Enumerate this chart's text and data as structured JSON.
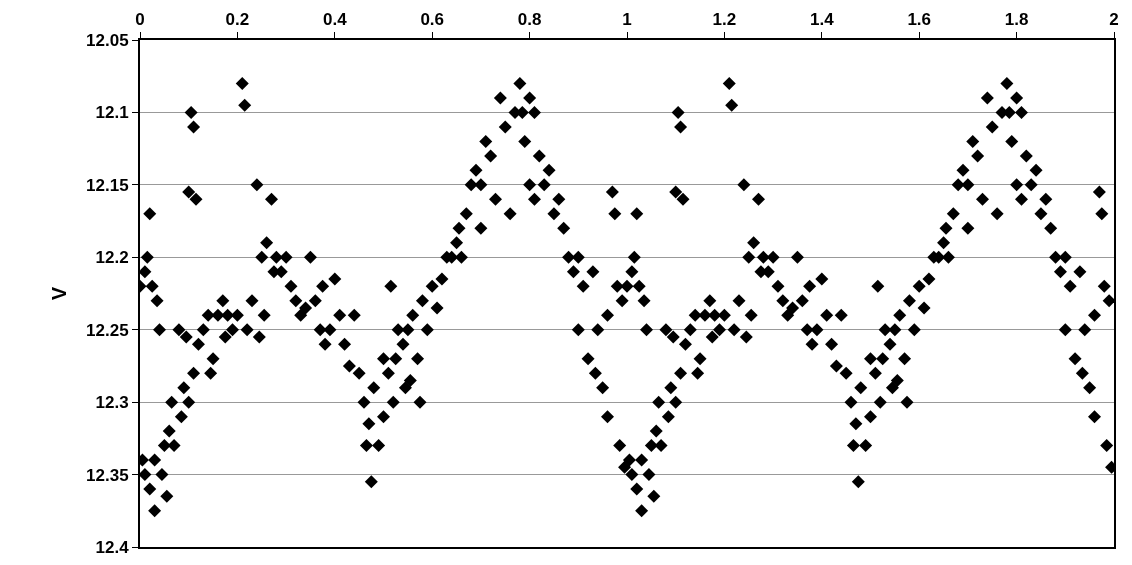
{
  "chart_data": {
    "type": "scatter",
    "ylabel": "V",
    "marker": "diamond",
    "grid": "y",
    "xlim": [
      0,
      2
    ],
    "xticks": [
      0,
      0.2,
      0.4,
      0.6,
      0.8,
      1,
      1.2,
      1.4,
      1.6,
      1.8,
      2
    ],
    "ylim": [
      12.4,
      12.05
    ],
    "yticks": [
      12.05,
      12.1,
      12.15,
      12.2,
      12.25,
      12.3,
      12.35,
      12.4
    ],
    "series": [
      {
        "color": "#000000",
        "x": [
          0,
          0.005,
          0.01,
          0.01,
          0.015,
          0.02,
          0.02,
          0.025,
          0.03,
          0.03,
          0.035,
          0.04,
          0.045,
          0.05,
          0.055,
          0.06,
          0.065,
          0.07,
          0.08,
          0.085,
          0.09,
          0.095,
          0.1,
          0.1,
          0.105,
          0.11,
          0.11,
          0.115,
          0.12,
          0.13,
          0.14,
          0.145,
          0.15,
          0.16,
          0.17,
          0.175,
          0.18,
          0.19,
          0.2,
          0.21,
          0.215,
          0.22,
          0.23,
          0.24,
          0.245,
          0.25,
          0.255,
          0.26,
          0.27,
          0.275,
          0.28,
          0.29,
          0.3,
          0.31,
          0.32,
          0.33,
          0.34,
          0.35,
          0.36,
          0.37,
          0.375,
          0.38,
          0.39,
          0.4,
          0.41,
          0.42,
          0.43,
          0.44,
          0.45,
          0.46,
          0.465,
          0.47,
          0.475,
          0.48,
          0.49,
          0.5,
          0.5,
          0.51,
          0.515,
          0.52,
          0.525,
          0.53,
          0.54,
          0.545,
          0.55,
          0.555,
          0.56,
          0.57,
          0.575,
          0.58,
          0.59,
          0.6,
          0.61,
          0.62,
          0.63,
          0.64,
          0.65,
          0.655,
          0.66,
          0.67,
          0.68,
          0.69,
          0.7,
          0.7,
          0.71,
          0.72,
          0.73,
          0.74,
          0.75,
          0.76,
          0.77,
          0.78,
          0.785,
          0.79,
          0.8,
          0.8,
          0.81,
          0.81,
          0.82,
          0.83,
          0.84,
          0.85,
          0.86,
          0.87,
          0.88,
          0.89,
          0.9,
          0.9,
          0.91,
          0.92,
          0.93,
          0.935,
          0.94,
          0.95,
          0.96,
          0.96,
          0.97,
          0.975,
          0.98,
          0.985,
          0.99,
          0.995,
          1,
          1.005,
          1.01,
          1.01,
          1.015,
          1.02,
          1.02,
          1.025,
          1.03,
          1.03,
          1.035,
          1.04,
          1.045,
          1.05,
          1.055,
          1.06,
          1.065,
          1.07,
          1.08,
          1.085,
          1.09,
          1.095,
          1.1,
          1.1,
          1.105,
          1.11,
          1.11,
          1.115,
          1.12,
          1.13,
          1.14,
          1.145,
          1.15,
          1.16,
          1.17,
          1.175,
          1.18,
          1.19,
          1.2,
          1.21,
          1.215,
          1.22,
          1.23,
          1.24,
          1.245,
          1.25,
          1.255,
          1.26,
          1.27,
          1.275,
          1.28,
          1.29,
          1.3,
          1.31,
          1.32,
          1.33,
          1.34,
          1.35,
          1.36,
          1.37,
          1.375,
          1.38,
          1.39,
          1.4,
          1.41,
          1.42,
          1.43,
          1.44,
          1.45,
          1.46,
          1.465,
          1.47,
          1.475,
          1.48,
          1.49,
          1.5,
          1.5,
          1.51,
          1.515,
          1.52,
          1.525,
          1.53,
          1.54,
          1.545,
          1.55,
          1.555,
          1.56,
          1.57,
          1.575,
          1.58,
          1.59,
          1.6,
          1.61,
          1.62,
          1.63,
          1.64,
          1.65,
          1.655,
          1.66,
          1.67,
          1.68,
          1.69,
          1.7,
          1.7,
          1.71,
          1.72,
          1.73,
          1.74,
          1.75,
          1.76,
          1.77,
          1.78,
          1.785,
          1.79,
          1.8,
          1.8,
          1.81,
          1.81,
          1.82,
          1.83,
          1.84,
          1.85,
          1.86,
          1.87,
          1.88,
          1.89,
          1.9,
          1.9,
          1.91,
          1.92,
          1.93,
          1.935,
          1.94,
          1.95,
          1.96,
          1.96,
          1.97,
          1.975,
          1.98,
          1.985,
          1.99,
          1.995
        ],
        "values": [
          12.22,
          12.34,
          12.21,
          12.35,
          12.2,
          12.36,
          12.17,
          12.22,
          12.375,
          12.34,
          12.23,
          12.25,
          12.35,
          12.33,
          12.365,
          12.32,
          12.3,
          12.33,
          12.25,
          12.31,
          12.29,
          12.255,
          12.155,
          12.3,
          12.1,
          12.11,
          12.28,
          12.16,
          12.26,
          12.25,
          12.24,
          12.28,
          12.27,
          12.24,
          12.23,
          12.255,
          12.24,
          12.25,
          12.24,
          12.08,
          12.095,
          12.25,
          12.23,
          12.15,
          12.255,
          12.2,
          12.24,
          12.19,
          12.16,
          12.21,
          12.2,
          12.21,
          12.2,
          12.22,
          12.23,
          12.24,
          12.235,
          12.2,
          12.23,
          12.25,
          12.22,
          12.26,
          12.25,
          12.215,
          12.24,
          12.26,
          12.275,
          12.24,
          12.28,
          12.3,
          12.33,
          12.315,
          12.355,
          12.29,
          12.33,
          12.27,
          12.31,
          12.28,
          12.22,
          12.3,
          12.27,
          12.25,
          12.26,
          12.29,
          12.25,
          12.285,
          12.24,
          12.27,
          12.3,
          12.23,
          12.25,
          12.22,
          12.235,
          12.215,
          12.2,
          12.2,
          12.19,
          12.18,
          12.2,
          12.17,
          12.15,
          12.14,
          12.15,
          12.18,
          12.12,
          12.13,
          12.16,
          12.09,
          12.11,
          12.17,
          12.1,
          12.08,
          12.1,
          12.12,
          12.09,
          12.15,
          12.1,
          12.16,
          12.13,
          12.15,
          12.14,
          12.17,
          12.16,
          12.18,
          12.2,
          12.21,
          12.2,
          12.25,
          12.22,
          12.27,
          12.21,
          12.28,
          12.25,
          12.29,
          12.24,
          12.31,
          12.155,
          12.17,
          12.22,
          12.33,
          12.23,
          12.345,
          12.22,
          12.34,
          12.21,
          12.35,
          12.2,
          12.36,
          12.17,
          12.22,
          12.375,
          12.34,
          12.23,
          12.25,
          12.35,
          12.33,
          12.365,
          12.32,
          12.3,
          12.33,
          12.25,
          12.31,
          12.29,
          12.255,
          12.155,
          12.3,
          12.1,
          12.11,
          12.28,
          12.16,
          12.26,
          12.25,
          12.24,
          12.28,
          12.27,
          12.24,
          12.23,
          12.255,
          12.24,
          12.25,
          12.24,
          12.08,
          12.095,
          12.25,
          12.23,
          12.15,
          12.255,
          12.2,
          12.24,
          12.19,
          12.16,
          12.21,
          12.2,
          12.21,
          12.2,
          12.22,
          12.23,
          12.24,
          12.235,
          12.2,
          12.23,
          12.25,
          12.22,
          12.26,
          12.25,
          12.215,
          12.24,
          12.26,
          12.275,
          12.24,
          12.28,
          12.3,
          12.33,
          12.315,
          12.355,
          12.29,
          12.33,
          12.27,
          12.31,
          12.28,
          12.22,
          12.3,
          12.27,
          12.25,
          12.26,
          12.29,
          12.25,
          12.285,
          12.24,
          12.27,
          12.3,
          12.23,
          12.25,
          12.22,
          12.235,
          12.215,
          12.2,
          12.2,
          12.19,
          12.18,
          12.2,
          12.17,
          12.15,
          12.14,
          12.15,
          12.18,
          12.12,
          12.13,
          12.16,
          12.09,
          12.11,
          12.17,
          12.1,
          12.08,
          12.1,
          12.12,
          12.09,
          12.15,
          12.1,
          12.16,
          12.13,
          12.15,
          12.14,
          12.17,
          12.16,
          12.18,
          12.2,
          12.21,
          12.2,
          12.25,
          12.22,
          12.27,
          12.21,
          12.28,
          12.25,
          12.29,
          12.24,
          12.31,
          12.155,
          12.17,
          12.22,
          12.33,
          12.23,
          12.345
        ]
      }
    ]
  }
}
